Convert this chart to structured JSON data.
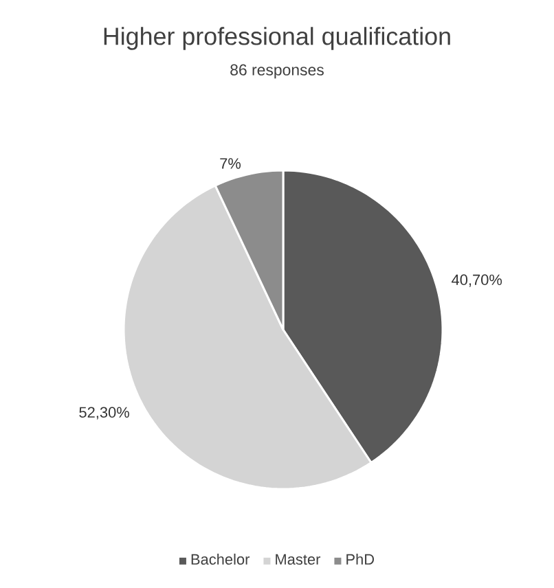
{
  "chart_data": {
    "type": "pie",
    "title": "Higher professional qualification",
    "subtitle": "86 responses",
    "categories": [
      "Bachelor",
      "Master",
      "PhD"
    ],
    "values": [
      40.7,
      52.3,
      7
    ],
    "value_labels": [
      "40,70%",
      "52,30%",
      "7%"
    ],
    "colors": [
      "#595959",
      "#d4d4d4",
      "#8c8c8c"
    ],
    "legend": "bottom"
  }
}
